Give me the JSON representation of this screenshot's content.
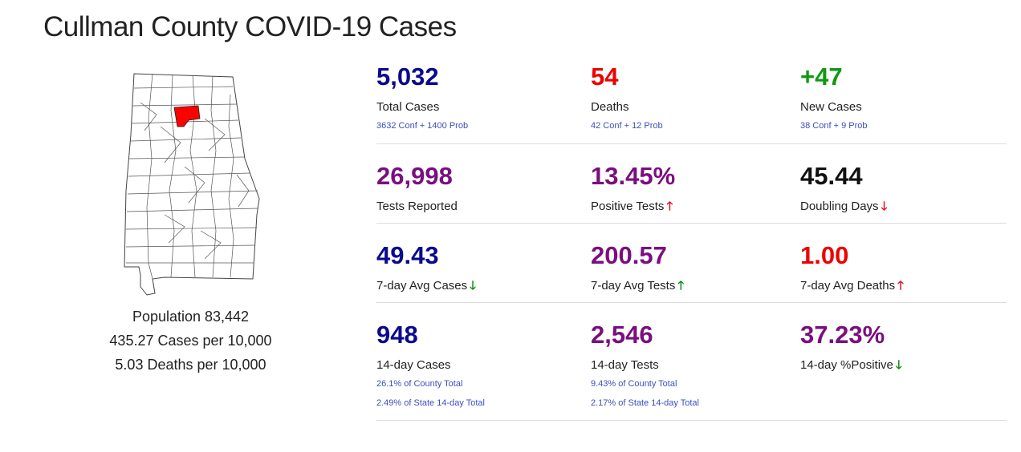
{
  "page_title": "Cullman County COVID-19 Cases",
  "colors": {
    "navy": "#0a0a8c",
    "red": "#ee0000",
    "green": "#119911",
    "purple": "#7a0f7f",
    "black": "#111111",
    "highlight_county": "#ff0000"
  },
  "county": {
    "population": "Population 83,442",
    "cases_per_10k": "435.27 Cases per 10,000",
    "deaths_per_10k": "5.03 Deaths per 10,000"
  },
  "stats": {
    "total_cases": {
      "value": "5,032",
      "label": "Total Cases",
      "sub": "3632 Conf + 1400 Prob"
    },
    "deaths": {
      "value": "54",
      "label": "Deaths",
      "sub": "42 Conf + 12 Prob"
    },
    "new_cases": {
      "value": "+47",
      "label": "New Cases",
      "sub": "38 Conf + 9 Prob"
    },
    "tests_reported": {
      "value": "26,998",
      "label": "Tests Reported"
    },
    "positive_tests": {
      "value": "13.45%",
      "label": "Positive Tests",
      "trend": "up-arrow-icon"
    },
    "doubling_days": {
      "value": "45.44",
      "label": "Doubling Days",
      "trend": "down-arrow-icon"
    },
    "avg7_cases": {
      "value": "49.43",
      "label": "7-day Avg Cases",
      "trend": "down-arrow-icon"
    },
    "avg7_tests": {
      "value": "200.57",
      "label": "7-day Avg Tests",
      "trend": "up-arrow-icon"
    },
    "avg7_deaths": {
      "value": "1.00",
      "label": "7-day Avg Deaths",
      "trend": "up-arrow-icon"
    },
    "d14_cases": {
      "value": "948",
      "label": "14-day Cases",
      "sub1": "26.1% of County Total",
      "sub2": "2.49% of State 14-day Total"
    },
    "d14_tests": {
      "value": "2,546",
      "label": "14-day Tests",
      "sub1": "9.43% of County Total",
      "sub2": "2.17% of State 14-day Total"
    },
    "d14_positive": {
      "value": "37.23%",
      "label": "14-day %Positive",
      "trend": "down-arrow-icon"
    }
  },
  "arrows": {
    "up": "🡑",
    "down": "🡓"
  }
}
